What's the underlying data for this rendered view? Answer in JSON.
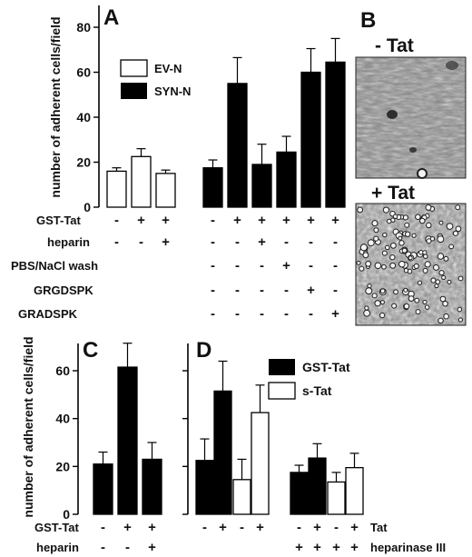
{
  "chart_data": [
    {
      "type": "bar",
      "panel": "A",
      "ylabel": "number of adherent cells/field",
      "ylim": [
        0,
        80
      ],
      "yticks": [
        0,
        20,
        40,
        60,
        80
      ],
      "legend": [
        "EV-N",
        "SYN-N"
      ],
      "series": [
        {
          "name": "EV-N",
          "color": "#ffffff",
          "values": [
            16,
            22.5,
            15
          ],
          "errors": [
            1.5,
            3.5,
            1.5
          ]
        },
        {
          "name": "SYN-N",
          "color": "#000000",
          "values": [
            17.5,
            55,
            19,
            24.5,
            60,
            64.5
          ],
          "errors": [
            3.5,
            11.5,
            9,
            7,
            10.5,
            10.5
          ]
        }
      ],
      "conditions": [
        {
          "label": "GST-Tat",
          "marks": [
            "-",
            "+",
            "+",
            "-",
            "+",
            "+",
            "+",
            "+",
            "+"
          ]
        },
        {
          "label": "heparin",
          "marks": [
            "-",
            "-",
            "+",
            "-",
            "-",
            "+",
            "-",
            "-",
            "-"
          ]
        },
        {
          "label": "PBS/NaCl wash",
          "marks": [
            "",
            "",
            "",
            "-",
            "-",
            "-",
            "+",
            "-",
            "-"
          ]
        },
        {
          "label": "GRGDSPK",
          "marks": [
            "",
            "",
            "",
            "-",
            "-",
            "-",
            "-",
            "+",
            "-"
          ]
        },
        {
          "label": "GRADSPK",
          "marks": [
            "",
            "",
            "",
            "-",
            "-",
            "-",
            "-",
            "-",
            "+"
          ]
        }
      ]
    },
    {
      "type": "bar",
      "panel": "C",
      "ylabel": "number of adherent cells/field",
      "ylim": [
        0,
        70
      ],
      "yticks": [
        0,
        20,
        40,
        60
      ],
      "series": [
        {
          "name": "",
          "color": "#000000",
          "values": [
            21,
            61.5,
            23
          ],
          "errors": [
            5,
            10,
            7
          ]
        }
      ],
      "conditions": [
        {
          "label": "GST-Tat",
          "marks": [
            "-",
            "+",
            "+"
          ]
        },
        {
          "label": "heparin",
          "marks": [
            "-",
            "-",
            "+"
          ]
        }
      ]
    },
    {
      "type": "bar",
      "panel": "D",
      "ylim": [
        0,
        70
      ],
      "legend": [
        "GST-Tat",
        "s-Tat"
      ],
      "bars": [
        {
          "series": "GST-Tat",
          "value": 22.5,
          "error": 9
        },
        {
          "series": "GST-Tat",
          "value": 51.5,
          "error": 12.5
        },
        {
          "series": "s-Tat",
          "value": 14.5,
          "error": 8.5
        },
        {
          "series": "s-Tat",
          "value": 42.5,
          "error": 11.5
        },
        {
          "series": "GST-Tat",
          "value": 17.5,
          "error": 3
        },
        {
          "series": "GST-Tat",
          "value": 23.5,
          "error": 6
        },
        {
          "series": "s-Tat",
          "value": 13.5,
          "error": 4
        },
        {
          "series": "s-Tat",
          "value": 19.5,
          "error": 6
        }
      ],
      "conditions": [
        {
          "label": "Tat",
          "marks": [
            "-",
            "+",
            "-",
            "+",
            "-",
            "+",
            "-",
            "+"
          ]
        },
        {
          "label": "heparinase III",
          "marks": [
            "",
            "",
            "",
            "",
            "+",
            "+",
            "+",
            "+"
          ]
        }
      ]
    }
  ],
  "panel_labels": {
    "a": "A",
    "b": "B",
    "c": "C",
    "d": "D"
  },
  "micrograph_labels": {
    "top": "- Tat",
    "bottom": "+ Tat"
  }
}
